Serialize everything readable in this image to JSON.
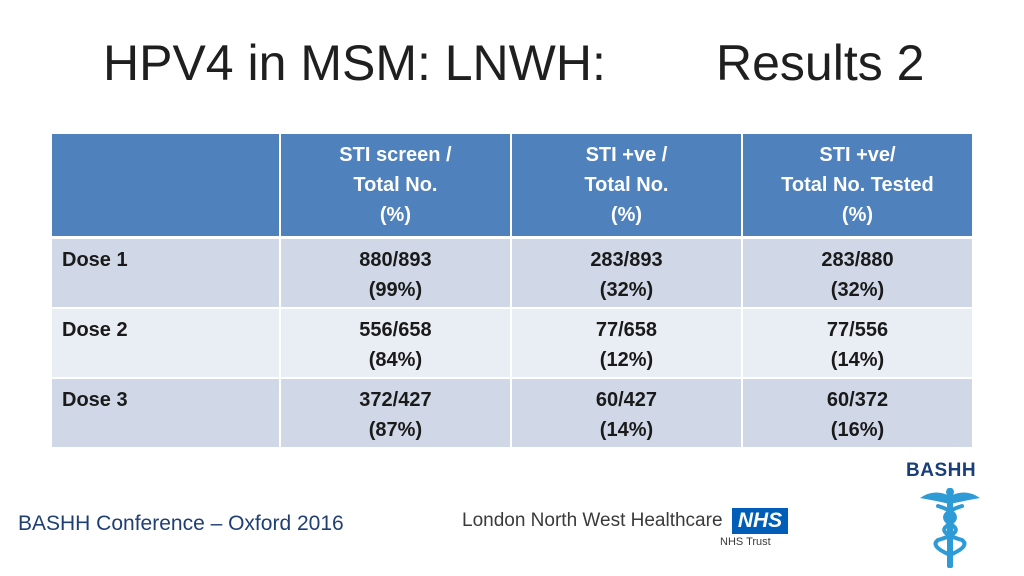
{
  "title": {
    "left": "HPV4 in MSM: LNWH:",
    "right": "Results 2"
  },
  "table": {
    "headers": [
      {
        "lines": []
      },
      {
        "lines": [
          "STI screen /",
          "Total No.",
          "(%)"
        ]
      },
      {
        "lines": [
          "STI +ve /",
          "Total No.",
          "(%)"
        ]
      },
      {
        "lines": [
          "STI +ve/",
          "Total No. Tested",
          "(%)"
        ]
      }
    ],
    "rows": [
      {
        "label": "Dose 1",
        "cells": [
          {
            "value": "880/893",
            "pct": "(99%)"
          },
          {
            "value": "283/893",
            "pct": "(32%)"
          },
          {
            "value": "283/880",
            "pct": "(32%)"
          }
        ]
      },
      {
        "label": "Dose 2",
        "cells": [
          {
            "value": "556/658",
            "pct": "(84%)"
          },
          {
            "value": "77/658",
            "pct": "(12%)"
          },
          {
            "value": "77/556",
            "pct": "(14%)"
          }
        ]
      },
      {
        "label": "Dose 3",
        "cells": [
          {
            "value": "372/427",
            "pct": "(87%)"
          },
          {
            "value": "60/427",
            "pct": "(14%)"
          },
          {
            "value": "60/372",
            "pct": "(16%)"
          }
        ]
      }
    ]
  },
  "footer": {
    "text": "BASHH Conference – Oxford 2016"
  },
  "logos": {
    "lnwh_name": "London North West Healthcare",
    "nhs_mark": "NHS",
    "nhs_trust": "NHS Trust",
    "bashh": "BASHH",
    "bashh_icon": "caduceus-icon"
  },
  "colors": {
    "header_blue": "#4f81bd",
    "row_dark": "#d0d8e8",
    "row_light": "#e9edf4",
    "nhs_blue": "#005eb8",
    "bashh_navy": "#1a3e78",
    "caduceus_blue": "#2e9bd6"
  }
}
